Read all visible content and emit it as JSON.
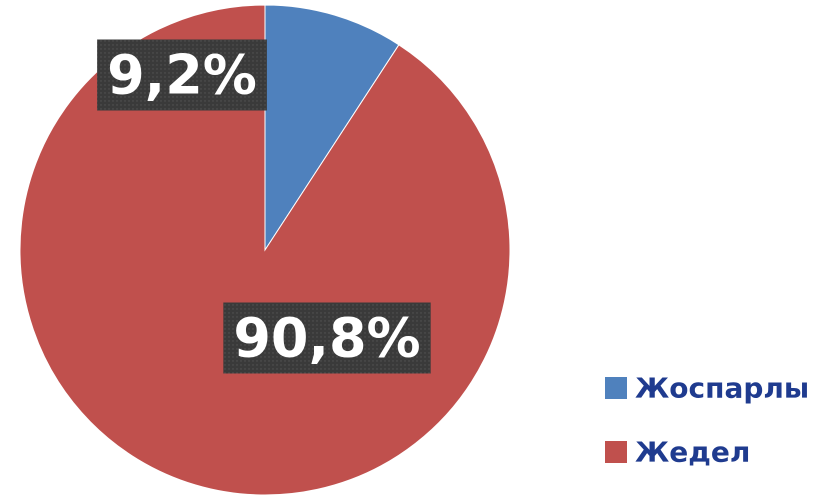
{
  "chart_data": {
    "type": "pie",
    "categories": [
      "Жоспарлы",
      "Жедел"
    ],
    "values": [
      9.2,
      90.8
    ],
    "value_labels": [
      "9,2%",
      "90,8%"
    ],
    "colors": [
      "#4f81bd",
      "#c0504d"
    ]
  }
}
